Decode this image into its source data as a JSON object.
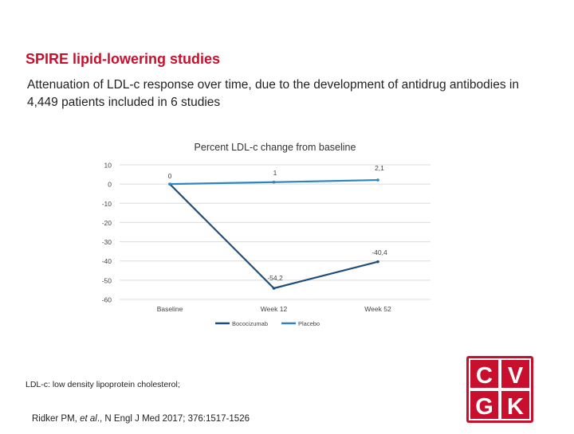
{
  "slide": {
    "title": "SPIRE lipid-lowering studies",
    "subtitle": "Attenuation of LDL-c response over time, due to the development of antidrug antibodies in 4,449 patients included in 6 studies",
    "footnote": "LDL-c: low density lipoprotein cholesterol;",
    "citation_prefix": "Ridker PM, ",
    "citation_italic": "et al",
    "citation_suffix": "., N Engl J Med 2017; 376:1517-1526"
  },
  "logo": {
    "letters": [
      "C",
      "V",
      "G",
      "K"
    ],
    "color": "#c8102e"
  },
  "chart_data": {
    "type": "line",
    "title": "Percent LDL-c change from baseline",
    "categories": [
      "Baseline",
      "Week 12",
      "Week 52"
    ],
    "yticks": [
      "10",
      "0",
      "-10",
      "-20",
      "-30",
      "-40",
      "-50",
      "-60"
    ],
    "ylim": [
      -60,
      10
    ],
    "grid": true,
    "legend_position": "bottom",
    "series": [
      {
        "name": "Bococizumab",
        "values": [
          0,
          -54.2,
          -40.4
        ],
        "labels": [
          "0",
          "-54,2",
          "-40,4"
        ],
        "color": "#1f4e79"
      },
      {
        "name": "Placebo",
        "values": [
          0,
          1,
          2.1
        ],
        "labels": [
          "0",
          "1",
          "2,1"
        ],
        "color": "#2e86c1"
      }
    ]
  }
}
